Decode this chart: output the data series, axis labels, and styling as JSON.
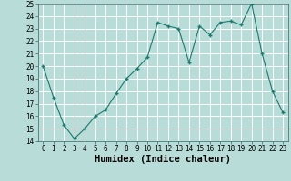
{
  "x": [
    0,
    1,
    2,
    3,
    4,
    5,
    6,
    7,
    8,
    9,
    10,
    11,
    12,
    13,
    14,
    15,
    16,
    17,
    18,
    19,
    20,
    21,
    22,
    23
  ],
  "y": [
    20.0,
    17.5,
    15.3,
    14.2,
    15.0,
    16.0,
    16.5,
    17.8,
    19.0,
    19.8,
    20.7,
    23.5,
    23.2,
    23.0,
    20.3,
    23.2,
    22.5,
    23.5,
    23.6,
    23.3,
    25.0,
    21.0,
    18.0,
    16.3
  ],
  "xlabel": "Humidex (Indice chaleur)",
  "ylim": [
    14,
    25
  ],
  "xlim": [
    -0.5,
    23.5
  ],
  "yticks": [
    14,
    15,
    16,
    17,
    18,
    19,
    20,
    21,
    22,
    23,
    24,
    25
  ],
  "xticks": [
    0,
    1,
    2,
    3,
    4,
    5,
    6,
    7,
    8,
    9,
    10,
    11,
    12,
    13,
    14,
    15,
    16,
    17,
    18,
    19,
    20,
    21,
    22,
    23
  ],
  "line_color": "#1a7a6e",
  "marker": "+",
  "bg_color": "#b8ddd8",
  "grid_color": "#ffffff",
  "tick_fontsize": 5.5,
  "xlabel_fontsize": 7.5,
  "xlabel_fontweight": "bold"
}
